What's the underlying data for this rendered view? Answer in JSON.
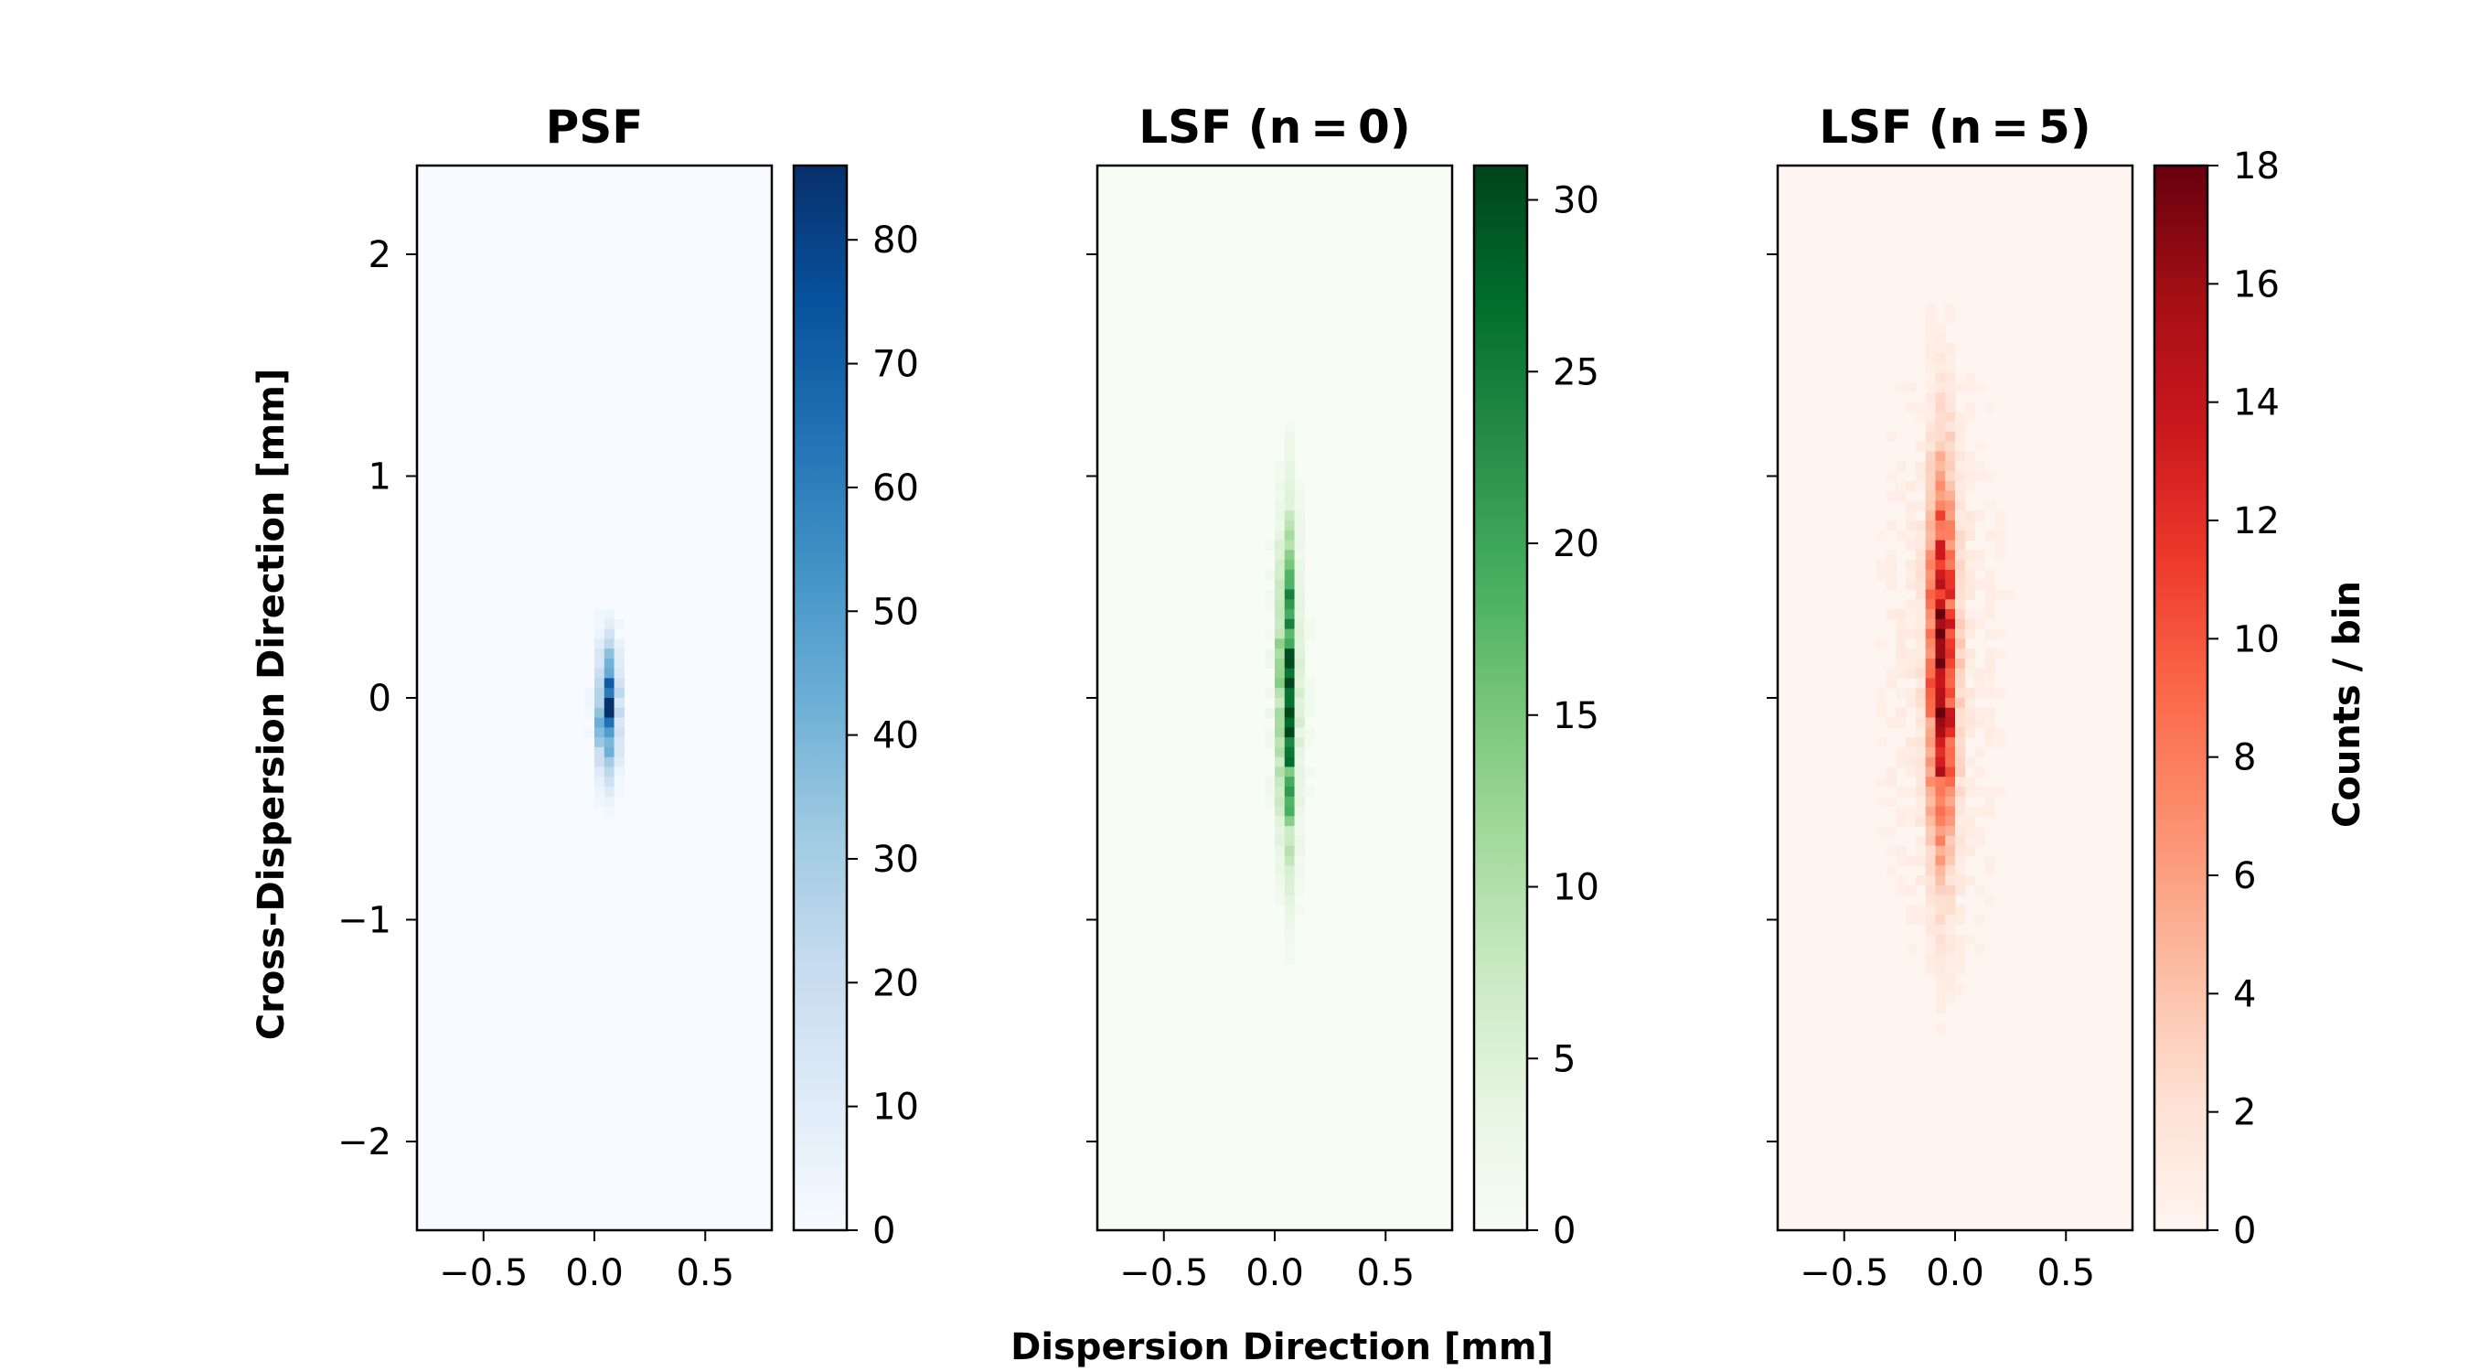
{
  "chart_data": [
    {
      "type": "heatmap",
      "title": "PSF",
      "colormap": "Blues",
      "colors": [
        "#f7fbff",
        "#deebf7",
        "#c6dbef",
        "#9ecae1",
        "#6baed6",
        "#4292c6",
        "#2171b5",
        "#08519c",
        "#08306b"
      ],
      "xlim": [
        -0.8,
        0.8
      ],
      "ylim": [
        -2.4,
        2.4
      ],
      "xticks": [
        -0.5,
        0.0,
        0.5
      ],
      "xtick_labels": [
        "−0.5",
        "0.0",
        "0.5"
      ],
      "yticks": [
        2,
        1,
        0,
        -1,
        -2
      ],
      "ytick_labels": [
        "2",
        "1",
        "0",
        "−1",
        "−2"
      ],
      "colorbar": {
        "min": 0,
        "max": 86,
        "ticks": [
          0,
          10,
          20,
          30,
          40,
          50,
          60,
          70,
          80
        ],
        "tick_labels": [
          "0",
          "10",
          "20",
          "30",
          "40",
          "50",
          "60",
          "70",
          "80"
        ]
      },
      "source": {
        "center_x": 0.06,
        "center_y": -0.05,
        "sigma_x": 0.03,
        "sigma_y": 0.17,
        "peak": 86,
        "halo_sigma_x": 0.06,
        "halo_sigma_y": 0.45,
        "halo_amp": 4
      }
    },
    {
      "type": "heatmap",
      "title": "LSF (n = 0)",
      "colormap": "Greens",
      "colors": [
        "#f7fcf5",
        "#e5f5e0",
        "#c7e9c0",
        "#a1d99b",
        "#74c476",
        "#41ab5d",
        "#238b45",
        "#006d2c",
        "#00441b"
      ],
      "xlim": [
        -0.8,
        0.8
      ],
      "ylim": [
        -2.4,
        2.4
      ],
      "xticks": [
        -0.5,
        0.0,
        0.5
      ],
      "xtick_labels": [
        "−0.5",
        "0.0",
        "0.5"
      ],
      "yticks": [
        2,
        1,
        0,
        -1,
        -2
      ],
      "ytick_labels": [
        "",
        "",
        "",
        "",
        ""
      ],
      "colorbar": {
        "min": 0,
        "max": 31,
        "ticks": [
          0,
          5,
          10,
          15,
          20,
          25,
          30
        ],
        "tick_labels": [
          "0",
          "5",
          "10",
          "15",
          "20",
          "25",
          "30"
        ]
      },
      "source": {
        "center_x": 0.06,
        "center_y": 0.05,
        "sigma_x": 0.025,
        "sigma_y": 0.45,
        "peak": 31,
        "halo_sigma_x": 0.07,
        "halo_sigma_y": 0.6,
        "halo_amp": 4
      }
    },
    {
      "type": "heatmap",
      "title": "LSF (n = 5)",
      "colormap": "Reds",
      "colors": [
        "#fff5f0",
        "#fee0d2",
        "#fcbba1",
        "#fc9272",
        "#fb6a4a",
        "#ef3b2c",
        "#cb181d",
        "#a50f15",
        "#67000d"
      ],
      "xlim": [
        -0.8,
        0.8
      ],
      "ylim": [
        -2.4,
        2.4
      ],
      "xticks": [
        -0.5,
        0.0,
        0.5
      ],
      "xtick_labels": [
        "−0.5",
        "0.0",
        "0.5"
      ],
      "yticks": [
        2,
        1,
        0,
        -1,
        -2
      ],
      "ytick_labels": [
        "",
        "",
        "",
        "",
        ""
      ],
      "colorbar": {
        "min": 0,
        "max": 18,
        "ticks": [
          0,
          2,
          4,
          6,
          8,
          10,
          12,
          14,
          16,
          18
        ],
        "tick_labels": [
          "0",
          "2",
          "4",
          "6",
          "8",
          "10",
          "12",
          "14",
          "16",
          "18"
        ]
      },
      "source": {
        "center_x": -0.06,
        "center_y": 0.15,
        "sigma_x": 0.04,
        "sigma_y": 0.55,
        "peak": 18,
        "halo_sigma_x": 0.2,
        "halo_sigma_y": 1.0,
        "halo_amp": 2
      }
    }
  ],
  "labels": {
    "xlabel": "Dispersion Direction [mm]",
    "ylabel": "Cross-Dispersion Direction [mm]",
    "colorbar_label": "Counts / bin"
  }
}
